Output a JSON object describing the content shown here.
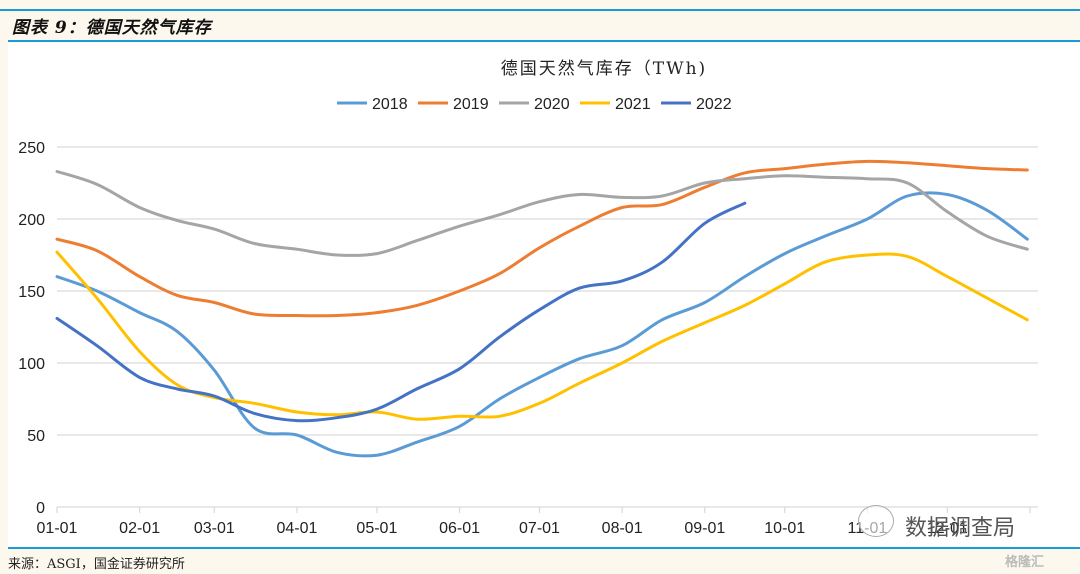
{
  "figure": {
    "label": "图表 9：德国天然气库存",
    "source": "来源：ASGI，国金证券研究所"
  },
  "watermark": {
    "text": "数据调查局",
    "logo": "格隆汇"
  },
  "chart_data": {
    "type": "line",
    "title": "德国天然气库存（TWh)",
    "xlabel": "",
    "ylabel": "",
    "ylim": [
      0,
      250
    ],
    "yticks": [
      0,
      50,
      100,
      150,
      200,
      250
    ],
    "grid": true,
    "legend_position": "top",
    "x_tick_labels": [
      "01-01",
      "02-01",
      "03-01",
      "04-01",
      "05-01",
      "06-01",
      "07-01",
      "08-01",
      "09-01",
      "10-01",
      "11-01",
      "12-01"
    ],
    "x_day_of_year": [
      0,
      15,
      31,
      45,
      59,
      74,
      90,
      105,
      120,
      135,
      151,
      166,
      181,
      196,
      212,
      227,
      243,
      258,
      273,
      288,
      304,
      319,
      334,
      349,
      364
    ],
    "series": [
      {
        "name": "2018",
        "color": "#5b9bd5",
        "values": [
          160,
          150,
          135,
          122,
          95,
          55,
          50,
          38,
          36,
          45,
          56,
          75,
          90,
          103,
          112,
          130,
          142,
          160,
          176,
          188,
          200,
          216,
          217,
          206,
          186
        ]
      },
      {
        "name": "2019",
        "color": "#ed7d31",
        "values": [
          186,
          178,
          160,
          147,
          142,
          134,
          133,
          133,
          135,
          140,
          150,
          162,
          180,
          195,
          208,
          210,
          222,
          232,
          235,
          238,
          240,
          239,
          237,
          235,
          234
        ]
      },
      {
        "name": "2020",
        "color": "#a5a5a5",
        "values": [
          233,
          224,
          208,
          199,
          193,
          183,
          179,
          175,
          176,
          185,
          195,
          203,
          212,
          217,
          215,
          216,
          225,
          228,
          230,
          229,
          228,
          225,
          205,
          188,
          179
        ]
      },
      {
        "name": "2021",
        "color": "#ffc000",
        "values": [
          177,
          145,
          108,
          85,
          76,
          72,
          66,
          64,
          66,
          61,
          63,
          63,
          72,
          86,
          100,
          115,
          128,
          140,
          155,
          170,
          175,
          174,
          160,
          145,
          130
        ]
      },
      {
        "name": "2022",
        "color": "#4472c4",
        "values": [
          131,
          112,
          90,
          82,
          77,
          65,
          60,
          62,
          68,
          82,
          96,
          118,
          137,
          152,
          157,
          170,
          197,
          211,
          null,
          null,
          null,
          null,
          null,
          null,
          null
        ]
      }
    ]
  }
}
